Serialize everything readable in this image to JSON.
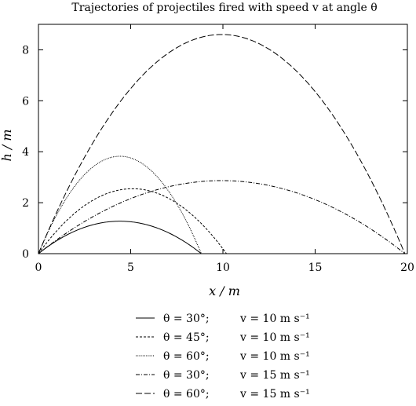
{
  "chart_data": {
    "type": "line",
    "title": "Trajectories of projectiles fired with speed v at angle θ",
    "xlabel": "x / m",
    "ylabel": "h / m",
    "xlim": [
      0,
      20
    ],
    "ylim": [
      0,
      9
    ],
    "xticks": [
      0,
      5,
      10,
      15,
      20
    ],
    "yticks": [
      0,
      2,
      4,
      6,
      8
    ],
    "grid": false,
    "legend_position": "below",
    "g": 9.81,
    "series": [
      {
        "name": "θ = 30°;   v = 10 m s⁻¹",
        "theta_label": "θ = 30°;",
        "speed_label": "v = 10 m s⁻¹",
        "theta_deg": 30,
        "v": 10,
        "style": "solid"
      },
      {
        "name": "θ = 45°;   v = 10 m s⁻¹",
        "theta_label": "θ = 45°;",
        "speed_label": "v = 10 m s⁻¹",
        "theta_deg": 45,
        "v": 10,
        "style": "dashed-short"
      },
      {
        "name": "θ = 60°;   v = 10 m s⁻¹",
        "theta_label": "θ = 60°;",
        "speed_label": "v = 10 m s⁻¹",
        "theta_deg": 60,
        "v": 10,
        "style": "dotted"
      },
      {
        "name": "θ = 30°;   v = 15 m s⁻¹",
        "theta_label": "θ = 30°;",
        "speed_label": "v = 15 m s⁻¹",
        "theta_deg": 30,
        "v": 15,
        "style": "dash-dot"
      },
      {
        "name": "θ = 60°;   v = 15 m s⁻¹",
        "theta_label": "θ = 60°;",
        "speed_label": "v = 15 m s⁻¹",
        "theta_deg": 60,
        "v": 15,
        "style": "dashed-long"
      }
    ]
  }
}
